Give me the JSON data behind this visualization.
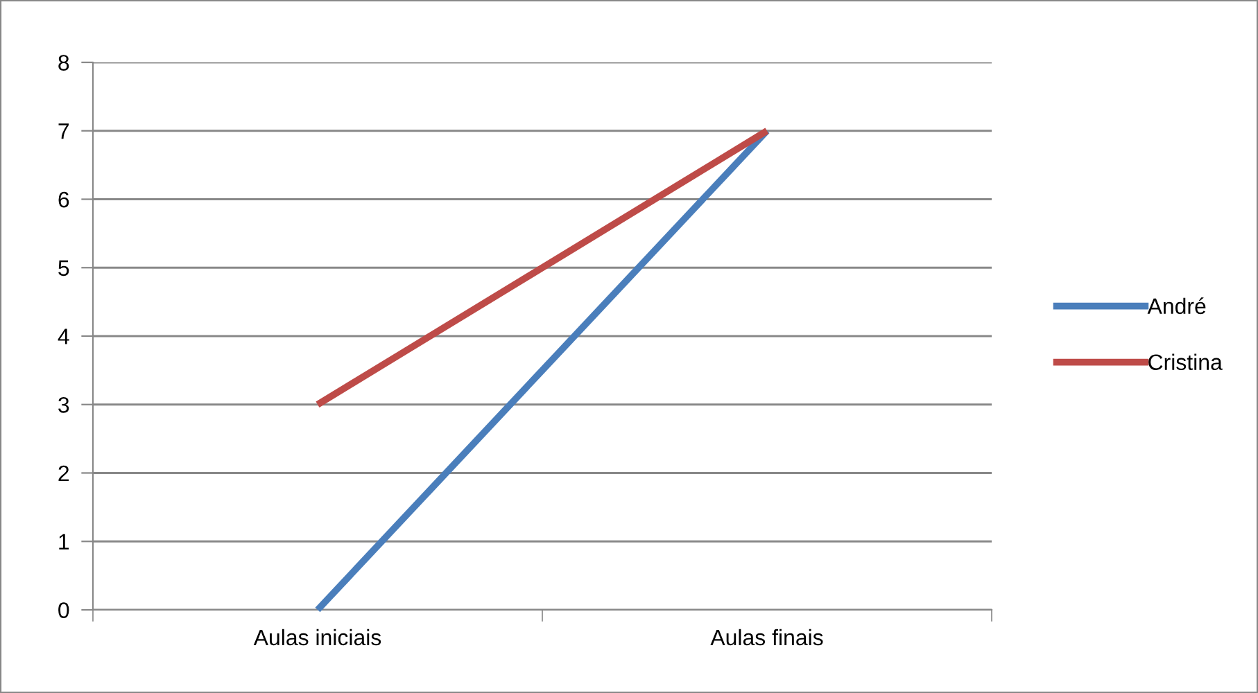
{
  "chart_data": {
    "type": "line",
    "categories": [
      "Aulas iniciais",
      "Aulas finais"
    ],
    "series": [
      {
        "name": "André",
        "color": "#4a7ebb",
        "values": [
          0,
          7
        ]
      },
      {
        "name": "Cristina",
        "color": "#be4b48",
        "values": [
          3,
          7
        ]
      }
    ],
    "ylim": [
      0,
      8
    ],
    "yticks": [
      0,
      1,
      2,
      3,
      4,
      5,
      6,
      7,
      8
    ],
    "grid": "y",
    "legend": "right",
    "marker": "none",
    "line_style": "solid"
  }
}
